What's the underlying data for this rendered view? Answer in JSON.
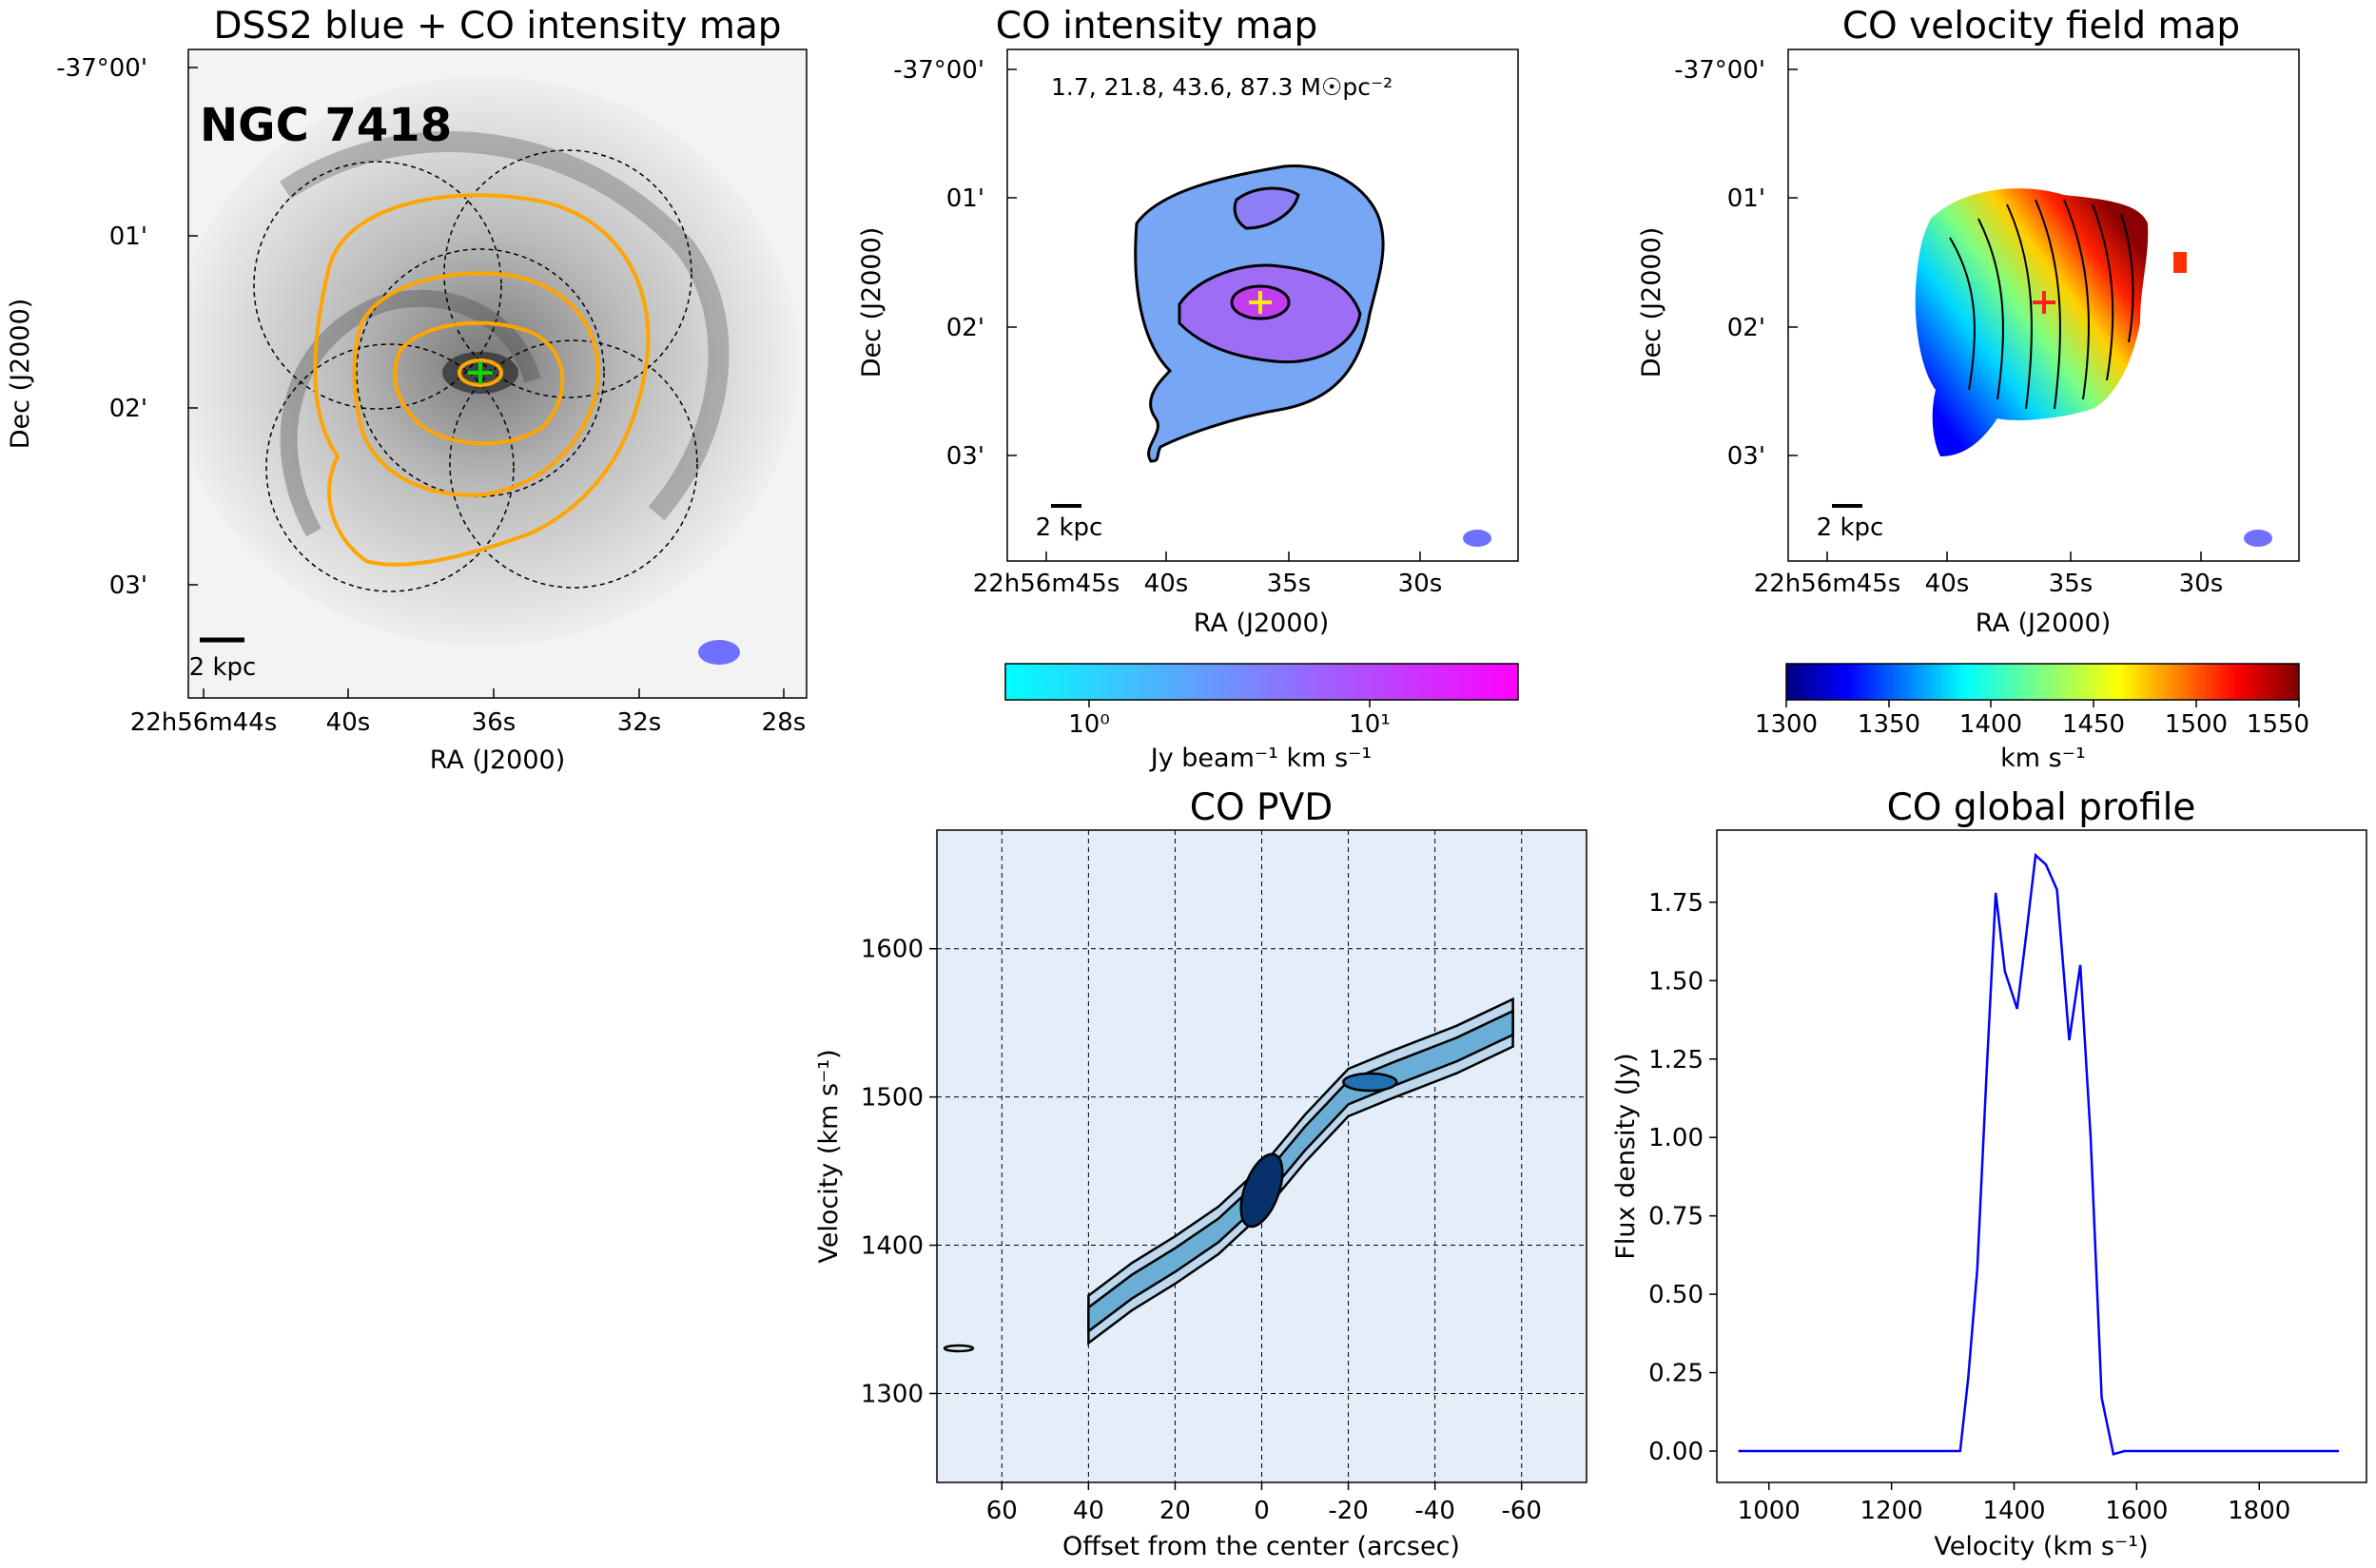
{
  "panels": {
    "dss2": {
      "title": "DSS2 blue + CO intensity map",
      "galaxy_label": "NGC 7418",
      "xlabel": "RA (J2000)",
      "ylabel": "Dec (J2000)",
      "x_ticks": [
        "22h56m44s",
        "40s",
        "36s",
        "32s",
        "28s"
      ],
      "y_ticks": [
        "-37°00'",
        "01'",
        "02'",
        "03'"
      ],
      "scale_label": "2 kpc"
    },
    "intensity": {
      "title": "CO intensity map",
      "contour_levels_note": "1.7, 21.8, 43.6, 87.3 M☉pc⁻²",
      "xlabel": "RA (J2000)",
      "ylabel": "Dec (J2000)",
      "x_ticks": [
        "22h56m45s",
        "40s",
        "35s",
        "30s"
      ],
      "y_ticks": [
        "-37°00'",
        "01'",
        "02'",
        "03'"
      ],
      "scale_label": "2 kpc",
      "colorbar": {
        "label": "Jy beam⁻¹ km s⁻¹",
        "ticks": [
          "10⁰",
          "10¹"
        ],
        "scale": "log",
        "cmap": "cool"
      }
    },
    "velocity": {
      "title": "CO velocity field map",
      "xlabel": "RA (J2000)",
      "ylabel": "Dec (J2000)",
      "x_ticks": [
        "22h56m45s",
        "40s",
        "35s",
        "30s"
      ],
      "y_ticks": [
        "-37°00'",
        "01'",
        "02'",
        "03'"
      ],
      "scale_label": "2 kpc",
      "colorbar": {
        "label": "km s⁻¹",
        "ticks": [
          "1300",
          "1350",
          "1400",
          "1450",
          "1500",
          "1550"
        ],
        "range": [
          1300,
          1550
        ],
        "cmap": "jet"
      }
    },
    "pvd": {
      "title": "CO PVD",
      "xlabel": "Offset from the center (arcsec)",
      "ylabel": "Velocity (km s⁻¹)",
      "x_ticks": [
        "60",
        "40",
        "20",
        "0",
        "-20",
        "-40",
        "-60"
      ],
      "y_ticks": [
        "1300",
        "1400",
        "1500",
        "1600"
      ]
    },
    "profile": {
      "title": "CO global profile",
      "xlabel": "Velocity (km s⁻¹)",
      "ylabel": "Flux density (Jy)",
      "x_ticks": [
        "1000",
        "1200",
        "1400",
        "1600",
        "1800"
      ],
      "y_ticks": [
        "0.00",
        "0.25",
        "0.50",
        "0.75",
        "1.00",
        "1.25",
        "1.50",
        "1.75"
      ]
    }
  },
  "chart_data": [
    {
      "type": "line",
      "title": "CO global profile",
      "xlabel": "Velocity (km s⁻¹)",
      "ylabel": "Flux density (Jy)",
      "xlim": [
        915,
        1975
      ],
      "ylim": [
        -0.1,
        1.98
      ],
      "color": "#0000ff",
      "x": [
        950,
        1000,
        1100,
        1200,
        1250,
        1300,
        1312,
        1325,
        1340,
        1355,
        1370,
        1385,
        1405,
        1420,
        1435,
        1452,
        1470,
        1490,
        1508,
        1525,
        1543,
        1562,
        1580,
        1600,
        1700,
        1800,
        1930
      ],
      "y": [
        0.0,
        0.0,
        0.0,
        0.0,
        0.0,
        0.0,
        0.0,
        0.23,
        0.58,
        1.2,
        1.78,
        1.53,
        1.41,
        1.65,
        1.9,
        1.87,
        1.79,
        1.31,
        1.55,
        1.0,
        0.17,
        -0.01,
        0.0,
        0.0,
        0.0,
        0.0,
        0.0
      ]
    },
    {
      "type": "heatmap",
      "title": "CO PVD",
      "xlabel": "Offset from the center (arcsec)",
      "ylabel": "Velocity (km s⁻¹)",
      "xlim": [
        75,
        -75
      ],
      "ylim": [
        1240,
        1680
      ],
      "ridge": [
        {
          "offset": 40,
          "velocity": 1350
        },
        {
          "offset": 30,
          "velocity": 1372
        },
        {
          "offset": 20,
          "velocity": 1390
        },
        {
          "offset": 10,
          "velocity": 1410
        },
        {
          "offset": 0,
          "velocity": 1437
        },
        {
          "offset": -10,
          "velocity": 1472
        },
        {
          "offset": -20,
          "velocity": 1503
        },
        {
          "offset": -30,
          "velocity": 1515
        },
        {
          "offset": -45,
          "velocity": 1532
        },
        {
          "offset": -58,
          "velocity": 1550
        }
      ]
    }
  ]
}
